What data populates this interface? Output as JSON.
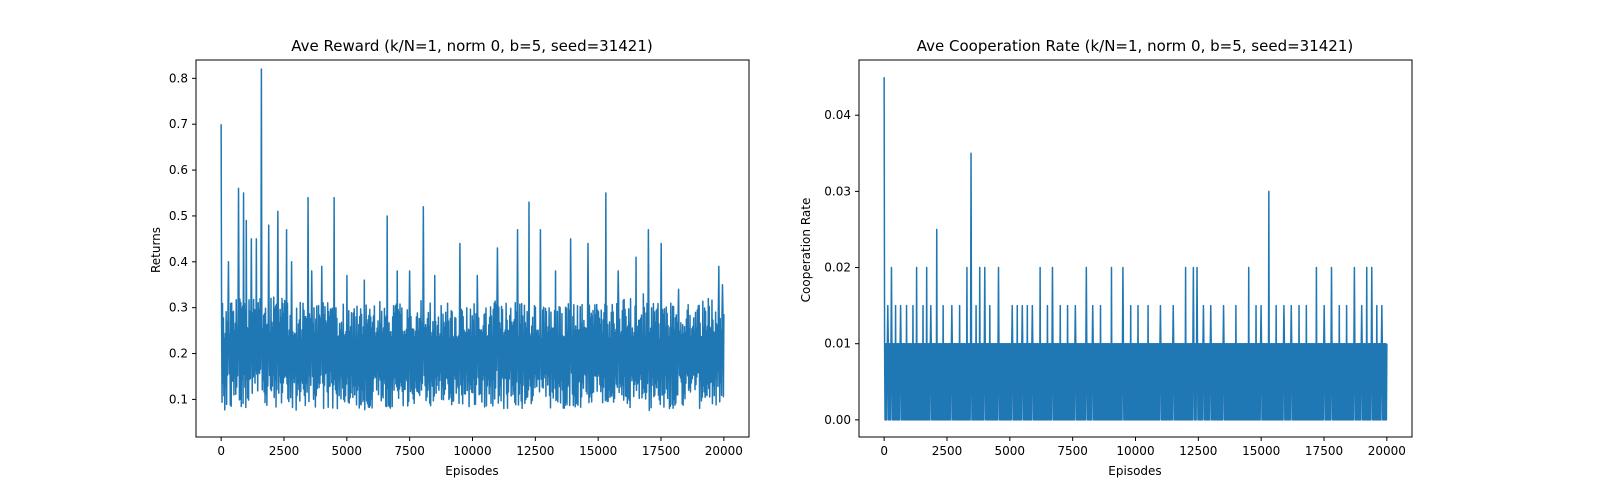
{
  "chart_data": [
    {
      "type": "line",
      "title": "Ave Reward (k/N=1, norm 0, b=5, seed=31421)",
      "xlabel": "Episodes",
      "ylabel": "Returns",
      "xlim": [
        -1000,
        21000
      ],
      "ylim": [
        0.018,
        0.84
      ],
      "xticks": [
        0,
        2500,
        5000,
        7500,
        10000,
        12500,
        15000,
        17500,
        20000
      ],
      "yticks": [
        0.1,
        0.2,
        0.3,
        0.4,
        0.5,
        0.6,
        0.7,
        0.8
      ],
      "ytick_labels": [
        "0.1",
        "0.2",
        "0.3",
        "0.4",
        "0.5",
        "0.6",
        "0.7",
        "0.8"
      ],
      "color": "#1f77b4",
      "grid": false,
      "series": [
        {
          "episodes": 20000,
          "band_x": [
            0,
            500,
            1000,
            1500,
            2000,
            2500,
            3000,
            3500,
            4000,
            4500,
            5000,
            5500,
            6000,
            6500,
            7000,
            7500,
            8000,
            8500,
            9000,
            9500,
            10000,
            10500,
            11000,
            11500,
            12000,
            12500,
            13000,
            13500,
            14000,
            14500,
            15000,
            15500,
            16000,
            16500,
            17000,
            17500,
            18000,
            18500,
            19000,
            19500,
            20000
          ],
          "band_low": [
            0.07,
            0.07,
            0.08,
            0.08,
            0.08,
            0.08,
            0.07,
            0.08,
            0.08,
            0.08,
            0.08,
            0.07,
            0.08,
            0.08,
            0.08,
            0.08,
            0.08,
            0.08,
            0.08,
            0.08,
            0.08,
            0.08,
            0.08,
            0.08,
            0.08,
            0.09,
            0.08,
            0.08,
            0.08,
            0.08,
            0.08,
            0.08,
            0.08,
            0.07,
            0.07,
            0.08,
            0.08,
            0.08,
            0.08,
            0.08,
            0.09
          ],
          "band_high": [
            0.31,
            0.33,
            0.32,
            0.33,
            0.33,
            0.32,
            0.32,
            0.31,
            0.31,
            0.32,
            0.31,
            0.31,
            0.32,
            0.31,
            0.31,
            0.31,
            0.32,
            0.31,
            0.31,
            0.31,
            0.31,
            0.31,
            0.32,
            0.32,
            0.31,
            0.31,
            0.31,
            0.31,
            0.31,
            0.31,
            0.31,
            0.31,
            0.32,
            0.32,
            0.31,
            0.31,
            0.31,
            0.31,
            0.32,
            0.32,
            0.3
          ],
          "spikes": [
            [
              0,
              0.7
            ],
            [
              300,
              0.4
            ],
            [
              700,
              0.56
            ],
            [
              900,
              0.55
            ],
            [
              1000,
              0.49
            ],
            [
              1200,
              0.45
            ],
            [
              1400,
              0.45
            ],
            [
              1600,
              0.82
            ],
            [
              1900,
              0.48
            ],
            [
              2250,
              0.51
            ],
            [
              2600,
              0.47
            ],
            [
              2800,
              0.4
            ],
            [
              3450,
              0.54
            ],
            [
              3600,
              0.38
            ],
            [
              4000,
              0.39
            ],
            [
              4500,
              0.54
            ],
            [
              5000,
              0.37
            ],
            [
              5700,
              0.36
            ],
            [
              6600,
              0.5
            ],
            [
              7000,
              0.38
            ],
            [
              7500,
              0.38
            ],
            [
              8050,
              0.52
            ],
            [
              8500,
              0.37
            ],
            [
              9500,
              0.44
            ],
            [
              10200,
              0.37
            ],
            [
              11000,
              0.43
            ],
            [
              11800,
              0.47
            ],
            [
              12250,
              0.53
            ],
            [
              12700,
              0.47
            ],
            [
              13300,
              0.38
            ],
            [
              13900,
              0.45
            ],
            [
              14600,
              0.44
            ],
            [
              15300,
              0.55
            ],
            [
              15800,
              0.38
            ],
            [
              16500,
              0.41
            ],
            [
              16800,
              0.33
            ],
            [
              17000,
              0.47
            ],
            [
              17500,
              0.44
            ],
            [
              18200,
              0.34
            ],
            [
              19800,
              0.39
            ],
            [
              19950,
              0.35
            ]
          ]
        }
      ]
    },
    {
      "type": "line",
      "title": "Ave Cooperation Rate (k/N=1, norm 0, b=5, seed=31421)",
      "xlabel": "Episodes",
      "ylabel": "Cooperation Rate",
      "xlim": [
        -1000,
        21000
      ],
      "ylim": [
        -0.00225,
        0.04725
      ],
      "xticks": [
        0,
        2500,
        5000,
        7500,
        10000,
        12500,
        15000,
        17500,
        20000
      ],
      "yticks": [
        0.0,
        0.01,
        0.02,
        0.03,
        0.04
      ],
      "ytick_labels": [
        "0.00",
        "0.01",
        "0.02",
        "0.03",
        "0.04"
      ],
      "color": "#1f77b4",
      "grid": false,
      "series": [
        {
          "episodes": 20000,
          "base_low": 0.0,
          "base_high": 0.01,
          "spikes": [
            [
              0,
              0.045
            ],
            [
              150,
              0.015
            ],
            [
              300,
              0.02
            ],
            [
              450,
              0.015
            ],
            [
              650,
              0.015
            ],
            [
              900,
              0.015
            ],
            [
              1150,
              0.015
            ],
            [
              1300,
              0.02
            ],
            [
              1550,
              0.015
            ],
            [
              1700,
              0.02
            ],
            [
              1850,
              0.015
            ],
            [
              2100,
              0.025
            ],
            [
              2350,
              0.015
            ],
            [
              2700,
              0.015
            ],
            [
              3000,
              0.015
            ],
            [
              3300,
              0.02
            ],
            [
              3450,
              0.035
            ],
            [
              3650,
              0.015
            ],
            [
              3800,
              0.02
            ],
            [
              4000,
              0.02
            ],
            [
              4200,
              0.015
            ],
            [
              4550,
              0.02
            ],
            [
              5100,
              0.015
            ],
            [
              5300,
              0.015
            ],
            [
              5500,
              0.015
            ],
            [
              5700,
              0.015
            ],
            [
              5900,
              0.015
            ],
            [
              6200,
              0.02
            ],
            [
              6500,
              0.015
            ],
            [
              6700,
              0.02
            ],
            [
              7000,
              0.015
            ],
            [
              7300,
              0.015
            ],
            [
              7600,
              0.015
            ],
            [
              8050,
              0.02
            ],
            [
              8300,
              0.015
            ],
            [
              8600,
              0.015
            ],
            [
              9050,
              0.02
            ],
            [
              9500,
              0.02
            ],
            [
              9800,
              0.015
            ],
            [
              10100,
              0.015
            ],
            [
              10500,
              0.015
            ],
            [
              11000,
              0.015
            ],
            [
              11500,
              0.015
            ],
            [
              12000,
              0.02
            ],
            [
              12300,
              0.02
            ],
            [
              12450,
              0.02
            ],
            [
              12700,
              0.015
            ],
            [
              13000,
              0.015
            ],
            [
              13500,
              0.015
            ],
            [
              14000,
              0.015
            ],
            [
              14500,
              0.02
            ],
            [
              14800,
              0.015
            ],
            [
              15000,
              0.015
            ],
            [
              15300,
              0.03
            ],
            [
              15600,
              0.015
            ],
            [
              15900,
              0.015
            ],
            [
              16200,
              0.015
            ],
            [
              16500,
              0.015
            ],
            [
              16800,
              0.015
            ],
            [
              17200,
              0.02
            ],
            [
              17500,
              0.015
            ],
            [
              17800,
              0.02
            ],
            [
              18100,
              0.015
            ],
            [
              18400,
              0.015
            ],
            [
              18700,
              0.02
            ],
            [
              19000,
              0.015
            ],
            [
              19200,
              0.02
            ],
            [
              19400,
              0.02
            ],
            [
              19600,
              0.015
            ],
            [
              19800,
              0.015
            ]
          ]
        }
      ]
    }
  ]
}
